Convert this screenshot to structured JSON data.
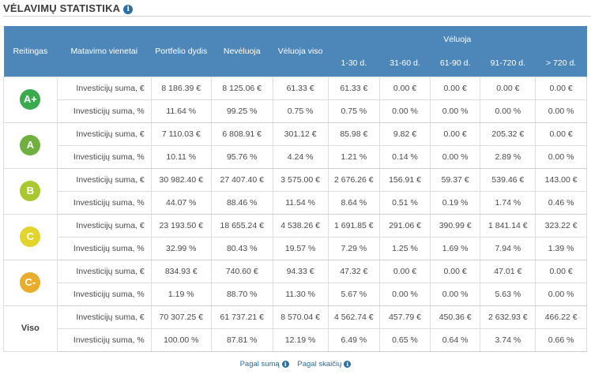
{
  "title": "VĖLAVIMŲ STATISTIKA",
  "header": {
    "rating": "Reitingas",
    "unit": "Matavimo vienetai",
    "portfolio": "Portfelio dydis",
    "not_late": "Nevėluoja",
    "late_total": "Vėluoja viso",
    "late_group": "Vėluoja",
    "buckets": [
      "1-30 d.",
      "31-60 d.",
      "61-90 d.",
      "91-720 d.",
      "> 720 d."
    ]
  },
  "rows": [
    {
      "rating": "A+",
      "color": "#3aaa4e",
      "amount": {
        "unit": "Investicijų suma, €",
        "values": [
          "8 186.39 €",
          "8 125.06 €",
          "61.33 €",
          "61.33 €",
          "0.00 €",
          "0.00 €",
          "0.00 €",
          "0.00 €"
        ]
      },
      "percent": {
        "unit": "Investicijų suma, %",
        "values": [
          "11.64 %",
          "99.25 %",
          "0.75 %",
          "0.75 %",
          "0.00 %",
          "0.00 %",
          "0.00 %",
          "0.00 %"
        ]
      }
    },
    {
      "rating": "A",
      "color": "#6fb03e",
      "amount": {
        "unit": "Investicijų suma, €",
        "values": [
          "7 110.03 €",
          "6 808.91 €",
          "301.12 €",
          "85.98 €",
          "9.82 €",
          "0.00 €",
          "205.32 €",
          "0.00 €"
        ]
      },
      "percent": {
        "unit": "Investicijų suma, %",
        "values": [
          "10.11 %",
          "95.76 %",
          "4.24 %",
          "1.21 %",
          "0.14 %",
          "0.00 %",
          "2.89 %",
          "0.00 %"
        ]
      }
    },
    {
      "rating": "B",
      "color": "#a9c82f",
      "amount": {
        "unit": "Investicijų suma, €",
        "values": [
          "30 982.40 €",
          "27 407.40 €",
          "3 575.00 €",
          "2 676.26 €",
          "156.91 €",
          "59.37 €",
          "539.46 €",
          "143.00 €"
        ]
      },
      "percent": {
        "unit": "Investicijų suma, %",
        "values": [
          "44.07 %",
          "88.46 %",
          "11.54 %",
          "8.64 %",
          "0.51 %",
          "0.19 %",
          "1.74 %",
          "0.46 %"
        ]
      }
    },
    {
      "rating": "C",
      "color": "#e2d42a",
      "amount": {
        "unit": "Investicijų suma, €",
        "values": [
          "23 193.50 €",
          "18 655.24 €",
          "4 538.26 €",
          "1 691.85 €",
          "291.06 €",
          "390.99 €",
          "1 841.14 €",
          "323.22 €"
        ]
      },
      "percent": {
        "unit": "Investicijų suma, %",
        "values": [
          "32.99 %",
          "80.43 %",
          "19.57 %",
          "7.29 %",
          "1.25 %",
          "1.69 %",
          "7.94 %",
          "1.39 %"
        ]
      }
    },
    {
      "rating": "C-",
      "color": "#e9ac2c",
      "amount": {
        "unit": "Investicijų suma, €",
        "values": [
          "834.93 €",
          "740.60 €",
          "94.33 €",
          "47.32 €",
          "0.00 €",
          "0.00 €",
          "47.01 €",
          "0.00 €"
        ]
      },
      "percent": {
        "unit": "Investicijų suma, %",
        "values": [
          "1.19 %",
          "88.70 %",
          "11.30 %",
          "5.67 %",
          "0.00 %",
          "0.00 %",
          "5.63 %",
          "0.00 %"
        ]
      }
    },
    {
      "rating": "Viso",
      "color": "",
      "amount": {
        "unit": "Investicijų suma, €",
        "values": [
          "70 307.25 €",
          "61 737.21 €",
          "8 570.04 €",
          "4 562.74 €",
          "457.79 €",
          "450.36 €",
          "2 632.93 €",
          "466.22 €"
        ]
      },
      "percent": {
        "unit": "Investicijų suma, %",
        "values": [
          "100.00 %",
          "87.81 %",
          "12.19 %",
          "6.49 %",
          "0.65 %",
          "0.64 %",
          "3.74 %",
          "0.66 %"
        ]
      }
    }
  ],
  "footer": {
    "by_amount": "Pagal sumą",
    "by_count": "Pagal skaičių",
    "info_icon": "info-icon"
  }
}
